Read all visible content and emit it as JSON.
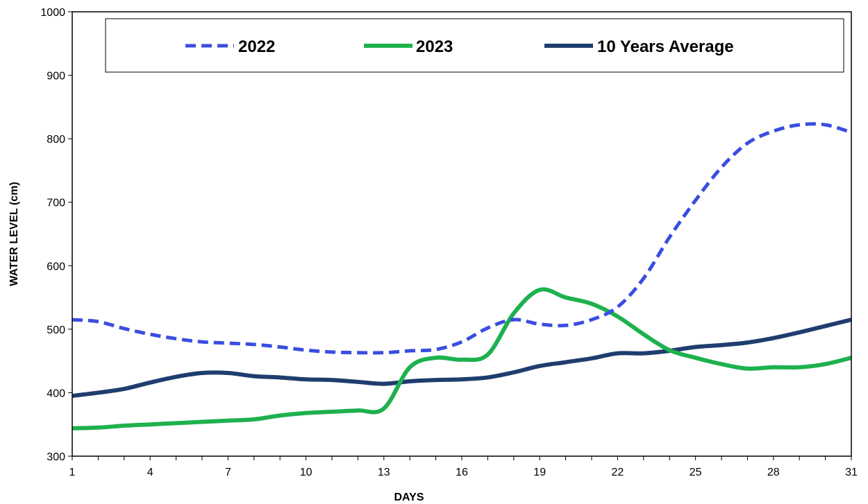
{
  "chart_data": {
    "type": "line",
    "title": "",
    "xlabel": "DAYS",
    "ylabel": "WATER LEVEL (cm)",
    "xlim": [
      1,
      31
    ],
    "ylim": [
      300,
      1000
    ],
    "x_ticks": [
      1,
      4,
      7,
      10,
      13,
      16,
      19,
      22,
      25,
      28,
      31
    ],
    "y_ticks": [
      300,
      400,
      500,
      600,
      700,
      800,
      900,
      1000
    ],
    "grid": false,
    "legend_position": "top",
    "x": [
      1,
      2,
      3,
      4,
      5,
      6,
      7,
      8,
      9,
      10,
      11,
      12,
      13,
      14,
      15,
      16,
      17,
      18,
      19,
      20,
      21,
      22,
      23,
      24,
      25,
      26,
      27,
      28,
      29,
      30,
      31
    ],
    "series": [
      {
        "name": "2022",
        "color": "#3a4ddf",
        "style": "dashed",
        "values": [
          515,
          512,
          501,
          492,
          485,
          480,
          478,
          476,
          472,
          467,
          464,
          463,
          463,
          466,
          468,
          480,
          502,
          515,
          508,
          506,
          515,
          535,
          580,
          645,
          703,
          755,
          793,
          812,
          822,
          822,
          810
        ]
      },
      {
        "name": "2023",
        "color": "#1eb14e",
        "style": "solid",
        "values": [
          344,
          345,
          348,
          350,
          352,
          354,
          356,
          358,
          364,
          368,
          370,
          372,
          375,
          440,
          455,
          452,
          460,
          525,
          562,
          550,
          540,
          520,
          492,
          467,
          455,
          445,
          438,
          440,
          440,
          445,
          455
        ]
      },
      {
        "name": "10 Years Average",
        "color": "#1f3d6e",
        "style": "solid",
        "values": [
          395,
          400,
          406,
          416,
          425,
          431,
          431,
          426,
          424,
          421,
          420,
          417,
          414,
          418,
          420,
          421,
          424,
          432,
          442,
          448,
          454,
          462,
          462,
          466,
          472,
          475,
          479,
          486,
          495,
          505,
          515
        ]
      }
    ]
  }
}
